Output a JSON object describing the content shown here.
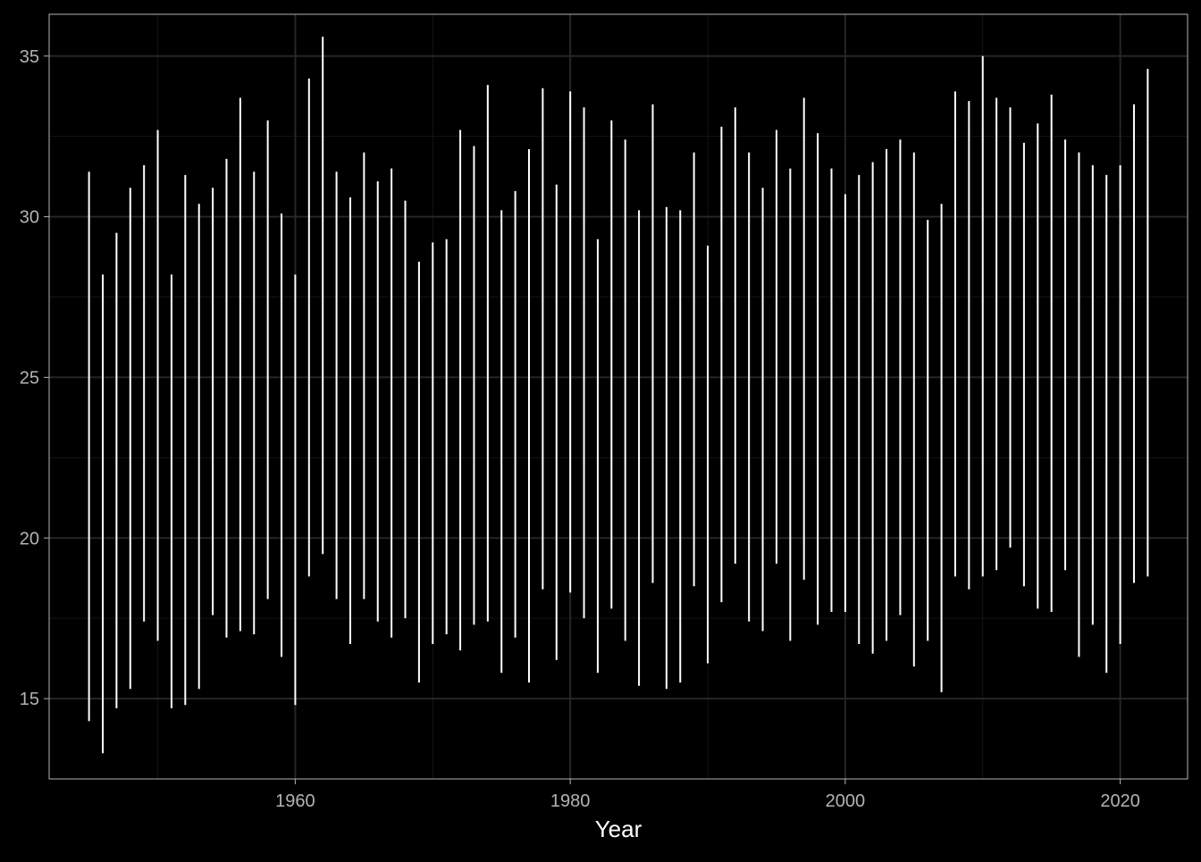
{
  "chart_data": {
    "type": "range",
    "title": "",
    "xlabel": "Year",
    "ylabel": "",
    "xlim": [
      1942.1,
      2024.9
    ],
    "ylim": [
      12.5,
      36.3
    ],
    "x_ticks": [
      1960,
      1980,
      2000,
      2020
    ],
    "y_ticks": [
      15,
      20,
      25,
      30,
      35
    ],
    "grid": true,
    "legend": "none",
    "colors": {
      "background": "#000000",
      "line": "#ffffff",
      "grid_major": "#262626",
      "grid_minor": "#141414",
      "text": "#b3b3b3",
      "axis_title": "#ffffff",
      "border": "#b3b3b3"
    },
    "series": [
      {
        "x": [
          1945,
          1946,
          1947,
          1948,
          1949,
          1950,
          1951,
          1952,
          1953,
          1954,
          1955,
          1956,
          1957,
          1958,
          1959,
          1960,
          1961,
          1962,
          1963,
          1964,
          1965,
          1966,
          1967,
          1968,
          1969,
          1970,
          1971,
          1972,
          1973,
          1974,
          1975,
          1976,
          1977,
          1978,
          1979,
          1980,
          1981,
          1982,
          1983,
          1984,
          1985,
          1986,
          1987,
          1988,
          1989,
          1990,
          1991,
          1992,
          1993,
          1994,
          1995,
          1996,
          1997,
          1998,
          1999,
          2000,
          2001,
          2002,
          2003,
          2004,
          2005,
          2006,
          2007,
          2008,
          2009,
          2010,
          2011,
          2012,
          2013,
          2014,
          2015,
          2016,
          2017,
          2018,
          2019,
          2020,
          2021,
          2022
        ],
        "low": [
          14.3,
          13.3,
          14.7,
          15.3,
          17.4,
          16.8,
          14.7,
          14.8,
          15.3,
          17.6,
          16.9,
          17.1,
          17.0,
          18.1,
          16.3,
          14.8,
          18.8,
          19.5,
          18.1,
          16.7,
          18.1,
          17.4,
          16.9,
          17.5,
          15.5,
          16.7,
          17.0,
          16.5,
          17.3,
          17.4,
          15.8,
          16.9,
          15.5,
          18.4,
          16.2,
          18.3,
          17.5,
          15.8,
          17.8,
          16.8,
          15.4,
          18.6,
          15.3,
          15.5,
          18.5,
          16.1,
          18.0,
          19.2,
          17.4,
          17.1,
          19.2,
          16.8,
          18.7,
          17.3,
          17.7,
          17.7,
          16.7,
          16.4,
          16.8,
          17.6,
          16.0,
          16.8,
          15.2,
          18.8,
          18.4,
          18.8,
          19.0,
          19.7,
          18.5,
          17.8,
          17.7,
          19.0,
          16.3,
          17.3,
          15.8,
          16.7,
          18.6,
          18.8
        ],
        "high": [
          31.4,
          28.2,
          29.5,
          30.9,
          31.6,
          32.7,
          28.2,
          31.3,
          30.4,
          30.9,
          31.8,
          33.7,
          31.4,
          33.0,
          30.1,
          28.2,
          34.3,
          35.6,
          31.4,
          30.6,
          32.0,
          31.1,
          31.5,
          30.5,
          28.6,
          29.2,
          29.3,
          32.7,
          32.2,
          34.1,
          30.2,
          30.8,
          32.1,
          34.0,
          31.0,
          33.9,
          33.4,
          29.3,
          33.0,
          32.4,
          30.2,
          33.5,
          30.3,
          30.2,
          32.0,
          29.1,
          32.8,
          33.4,
          32.0,
          30.9,
          32.7,
          31.5,
          33.7,
          32.6,
          31.5,
          30.7,
          31.3,
          31.7,
          32.1,
          32.4,
          32.0,
          29.9,
          30.4,
          33.9,
          33.6,
          35.0,
          33.7,
          33.4,
          32.3,
          32.9,
          33.8,
          32.4,
          32.0,
          31.6,
          31.3,
          31.6,
          33.5,
          34.6
        ]
      }
    ]
  }
}
